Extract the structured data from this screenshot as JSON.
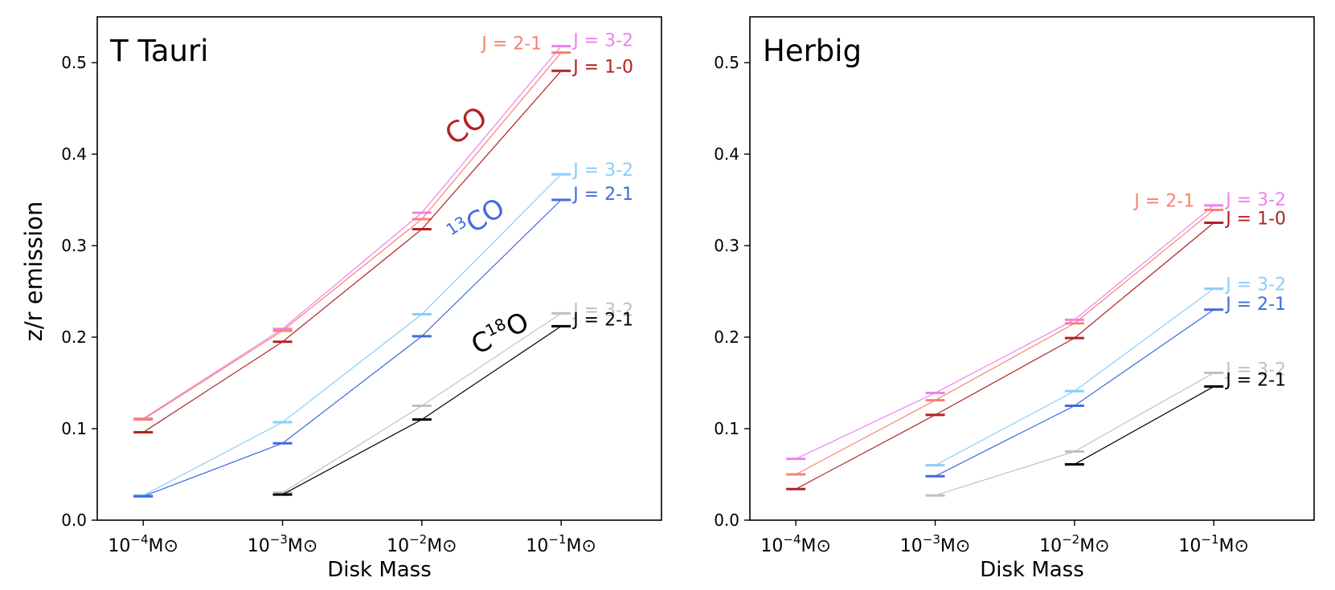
{
  "figure": {
    "xlabel": "Disk Mass",
    "ylabel": "z/r emission"
  },
  "colors": {
    "co_32": "#ee82ee",
    "co_21": "#fa8072",
    "co_10": "#b22222",
    "c13_32": "#87cefa",
    "c13_21": "#4169e1",
    "c18_32": "#c0c0c0",
    "c18_21": "#000000",
    "co_name": "#b22222",
    "c13_name": "#4169e1",
    "c18_name": "#000000"
  },
  "chart_data": [
    {
      "type": "line",
      "title": "T Tauri",
      "xlabel": "Disk Mass",
      "ylabel": "z/r emission",
      "x": [
        "1e-4",
        "1e-3",
        "1e-2",
        "1e-1"
      ],
      "x_tick_labels": [
        {
          "base": "10",
          "exp": "−4",
          "unit": "M⊙"
        },
        {
          "base": "10",
          "exp": "−3",
          "unit": "M⊙"
        },
        {
          "base": "10",
          "exp": "−2",
          "unit": "M⊙"
        },
        {
          "base": "10",
          "exp": "−1",
          "unit": "M⊙"
        }
      ],
      "xlim": [
        -4.33,
        -0.28
      ],
      "ylim": [
        0,
        0.55
      ],
      "yticks": [
        "0.0",
        "0.1",
        "0.2",
        "0.3",
        "0.4",
        "0.5"
      ],
      "series": [
        {
          "name": "CO J = 3-2",
          "molecule": "CO",
          "color_key": "co_32",
          "label": "J = 3-2",
          "values": [
            0.111,
            0.209,
            0.336,
            0.518
          ]
        },
        {
          "name": "CO J = 2-1",
          "molecule": "CO",
          "color_key": "co_21",
          "label": "J = 2-1",
          "values": [
            0.11,
            0.207,
            0.329,
            0.511
          ]
        },
        {
          "name": "CO J = 1-0",
          "molecule": "CO",
          "color_key": "co_10",
          "label": "J = 1-0",
          "values": [
            0.096,
            0.195,
            0.318,
            0.491
          ]
        },
        {
          "name": "13CO J = 3-2",
          "molecule": "13CO",
          "color_key": "c13_32",
          "label": "J = 3-2",
          "values": [
            0.027,
            0.107,
            0.225,
            0.378
          ]
        },
        {
          "name": "13CO J = 2-1",
          "molecule": "13CO",
          "color_key": "c13_21",
          "label": "J = 2-1",
          "values": [
            0.026,
            0.084,
            0.201,
            0.35
          ]
        },
        {
          "name": "C18O J = 3-2",
          "molecule": "C18O",
          "color_key": "c18_32",
          "label": "J = 3-2",
          "values": [
            null,
            0.03,
            0.125,
            0.226
          ]
        },
        {
          "name": "C18O J = 2-1",
          "molecule": "C18O",
          "color_key": "c18_21",
          "label": "J = 2-1",
          "values": [
            null,
            0.028,
            0.11,
            0.212
          ]
        }
      ],
      "annotations": [
        {
          "id": "co",
          "base": "CO",
          "sup": "",
          "tail": "",
          "color_key": "co_name"
        },
        {
          "id": "c13",
          "base": "",
          "sup": "13",
          "tail": "CO",
          "color_key": "c13_name"
        },
        {
          "id": "c18",
          "base": "C",
          "sup": "18",
          "tail": "O",
          "color_key": "c18_name"
        }
      ]
    },
    {
      "type": "line",
      "title": "Herbig",
      "xlabel": "Disk Mass",
      "ylabel": "",
      "x": [
        "1e-4",
        "1e-3",
        "1e-2",
        "1e-1"
      ],
      "x_tick_labels": [
        {
          "base": "10",
          "exp": "−4",
          "unit": "M⊙"
        },
        {
          "base": "10",
          "exp": "−3",
          "unit": "M⊙"
        },
        {
          "base": "10",
          "exp": "−2",
          "unit": "M⊙"
        },
        {
          "base": "10",
          "exp": "−1",
          "unit": "M⊙"
        }
      ],
      "xlim": [
        -4.33,
        -0.28
      ],
      "ylim": [
        0,
        0.55
      ],
      "yticks": [
        "0.0",
        "0.1",
        "0.2",
        "0.3",
        "0.4",
        "0.5"
      ],
      "series": [
        {
          "name": "CO J = 3-2",
          "molecule": "CO",
          "color_key": "co_32",
          "label": "J = 3-2",
          "values": [
            0.067,
            0.139,
            0.219,
            0.344
          ]
        },
        {
          "name": "CO J = 2-1",
          "molecule": "CO",
          "color_key": "co_21",
          "label": "J = 2-1",
          "values": [
            0.05,
            0.131,
            0.215,
            0.339
          ]
        },
        {
          "name": "CO J = 1-0",
          "molecule": "CO",
          "color_key": "co_10",
          "label": "J = 1-0",
          "values": [
            0.034,
            0.115,
            0.199,
            0.325
          ]
        },
        {
          "name": "13CO J = 3-2",
          "molecule": "13CO",
          "color_key": "c13_32",
          "label": "J = 3-2",
          "values": [
            null,
            0.06,
            0.141,
            0.253
          ]
        },
        {
          "name": "13CO J = 2-1",
          "molecule": "13CO",
          "color_key": "c13_21",
          "label": "J = 2-1",
          "values": [
            null,
            0.048,
            0.125,
            0.23
          ]
        },
        {
          "name": "C18O J = 3-2",
          "molecule": "C18O",
          "color_key": "c18_32",
          "label": "J = 3-2",
          "values": [
            null,
            0.027,
            0.075,
            0.161
          ]
        },
        {
          "name": "C18O J = 2-1",
          "molecule": "C18O",
          "color_key": "c18_21",
          "label": "J = 2-1",
          "values": [
            null,
            null,
            0.061,
            0.146
          ]
        }
      ],
      "annotations": []
    }
  ]
}
